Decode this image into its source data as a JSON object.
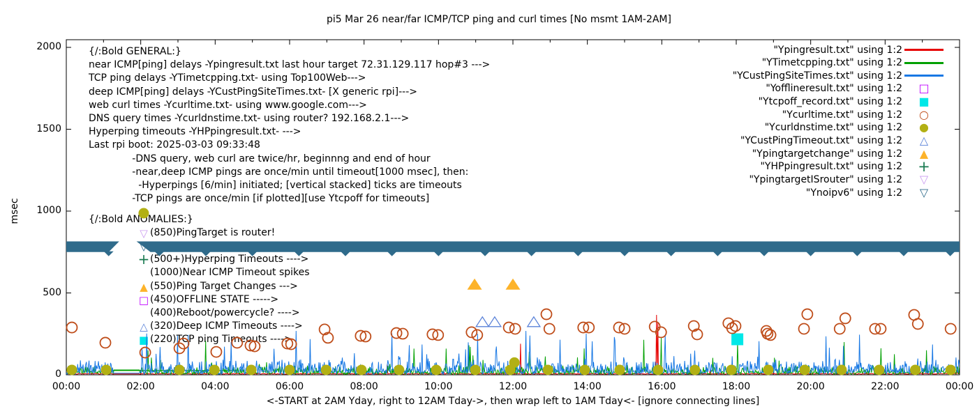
{
  "title": "pi5 Mar 26  near/far ICMP/TCP ping and curl times [No msmt 1AM-2AM]",
  "colors": {
    "red": "#e60000",
    "green": "#00a000",
    "blue": "#1878e4",
    "magenta": "#bf00ff",
    "cyan": "#00e8e8",
    "rust": "#bf4d1a",
    "olive": "#b2b014",
    "ltblue": "#5a82d8",
    "amber": "#fdb32a",
    "dkgreen": "#187a50",
    "violet": "#cb9df0",
    "steel": "#2f6b8b",
    "axis": "#000000"
  },
  "y_axis": {
    "label": "msec",
    "ticks": [
      0,
      500,
      1000,
      1500,
      2000
    ],
    "range": [
      0,
      2000
    ]
  },
  "x_axis": {
    "caption": "<-START at 2AM Yday, right to 12AM Tday->, then wrap left to 1AM Tday<- [ignore connecting lines]",
    "hours_span": 24,
    "major_every_h": 2,
    "minor_every_h": 1,
    "tick_labels": [
      "00:00",
      "02:00",
      "04:00",
      "06:00",
      "08:00",
      "10:00",
      "12:00",
      "14:00",
      "16:00",
      "18:00",
      "20:00",
      "22:00",
      "00:00"
    ]
  },
  "legend": {
    "rows": [
      {
        "label": "\"Ypingresult.txt\" using 1:2",
        "sample": "line",
        "color_key": "red"
      },
      {
        "label": "\"YTimetcpping.txt\" using 1:2",
        "sample": "line",
        "color_key": "green"
      },
      {
        "label": "\"YCustPingSiteTimes.txt\" using 1:2",
        "sample": "line",
        "color_key": "blue"
      },
      {
        "label": "\"Yofflineresult.txt\" using 1:2",
        "sample": "square-open",
        "color_key": "magenta"
      },
      {
        "label": "\"Ytcpoff_record.txt\" using 1:2",
        "sample": "square-filled",
        "color_key": "cyan"
      },
      {
        "label": "\"Ycurltime.txt\" using 1:2",
        "sample": "circle-open",
        "color_key": "rust"
      },
      {
        "label": "\"Ycurldnstime.txt\" using 1:2",
        "sample": "circle-filled",
        "color_key": "olive"
      },
      {
        "label": "\"YCustPingTimeout.txt\" using 1:2",
        "sample": "triangle-up-open",
        "color_key": "ltblue"
      },
      {
        "label": "\"Ypingtargetchange\" using 1:2",
        "sample": "triangle-up-filled",
        "color_key": "amber"
      },
      {
        "label": "\"YHPpingresult.txt\" using 1:2",
        "sample": "plus",
        "color_key": "dkgreen"
      },
      {
        "label": "\"YpingtargetISrouter\" using 1:2",
        "sample": "triangle-down-open",
        "color_key": "violet"
      },
      {
        "label": "\"Ynoipv6\" using 1:2",
        "sample": "triangle-down-open",
        "color_key": "steel"
      }
    ]
  },
  "annotations": {
    "general_lines": [
      "{/:Bold GENERAL:}",
      "near ICMP[ping] delays -Ypingresult.txt last hour target 72.31.129.117 hop#3 --->",
      "TCP ping delays -YTimetcpping.txt- using Top100Web--->",
      "deep ICMP[ping] delays -YCustPingSiteTimes.txt- [X generic rpi]--->",
      "web curl times -Ycurltime.txt- using www.google.com--->",
      "DNS query times -Ycurldnstime.txt- using router? 192.168.2.1--->",
      "Hyperping timeouts -YHPpingresult.txt- --->",
      "Last rpi boot: 2025-03-03 09:33:48",
      "              -DNS query, web curl are twice/hr, beginnng and end of hour",
      "              -near,deep ICMP pings are once/min until timeout[1000 msec], then:",
      "                -Hyperpings [6/min] initiated; [vertical stacked] ticks are timeouts",
      "              -TCP pings are once/min [if plotted][use Ytcpoff for timeouts]"
    ],
    "anomalies_rows": [
      {
        "marker": "",
        "color_key": "",
        "text": "{/:Bold ANOMALIES:}"
      },
      {
        "marker": "triangle-down-open",
        "color_key": "violet",
        "text": "(850)PingTarget is router!"
      },
      {
        "marker": "triangle-down-open",
        "color_key": "steel",
        "text": ""
      },
      {
        "marker": "plus",
        "color_key": "dkgreen",
        "text": "(500+)Hyperping Timeouts ---->"
      },
      {
        "marker": "",
        "color_key": "",
        "text": "(1000)Near ICMP Timeout spikes"
      },
      {
        "marker": "triangle-up-filled",
        "color_key": "amber",
        "text": "(550)Ping Target Changes --->"
      },
      {
        "marker": "square-open",
        "color_key": "magenta",
        "text": "(450)OFFLINE STATE ----->"
      },
      {
        "marker": "",
        "color_key": "",
        "text": "(400)Reboot/powercycle? ---->"
      },
      {
        "marker": "triangle-up-open",
        "color_key": "ltblue",
        "text": "(320)Deep ICMP Timeouts ---->"
      },
      {
        "marker": "square-filled",
        "color_key": "cyan",
        "text": "(220)TCP ping Timeouts ---->"
      }
    ]
  },
  "chart_data": {
    "type": "line",
    "title": "pi5 Mar 26  near/far ICMP/TCP ping and curl times [No msmt 1AM-2AM]",
    "xlabel": "<-START at 2AM Yday, right to 12AM Tday->, then wrap left to 1AM Tday<- [ignore connecting lines]",
    "ylabel": "msec",
    "x_range_hours": [
      0,
      24
    ],
    "ylim": [
      0,
      2000
    ],
    "grid": false,
    "legend_position": "top-right",
    "no_measurement_gap_hours": [
      1.27,
      1.98
    ],
    "series": [
      {
        "name": "\"Ypingresult.txt\" using 1:2",
        "type": "line",
        "color_key": "red",
        "noise": {
          "seed": 41,
          "base": 3,
          "jitter": 4,
          "max": 26,
          "pow": 2.5,
          "tall_prob": 0.012,
          "low": 0.15,
          "gap_flat": 5
        },
        "spikes": [
          [
            8.62,
            62
          ],
          [
            12.21,
            190
          ],
          [
            15.86,
            366
          ],
          [
            15.9,
            320
          ]
        ]
      },
      {
        "name": "\"YTimetcpping.txt\" using 1:2",
        "type": "line",
        "color_key": "green",
        "noise": {
          "seed": 29,
          "base": 2,
          "jitter": 12,
          "max": 205,
          "pow": 3.0,
          "tall_prob": 0.055,
          "low": 0.22,
          "gap_flat": 30
        },
        "spikes": [
          [
            2.2,
            150
          ],
          [
            9.35,
            160
          ],
          [
            10.2,
            160
          ],
          [
            15.99,
            225
          ],
          [
            20.9,
            200
          ],
          [
            23.12,
            150
          ]
        ],
        "flat_segments": [
          [
            1.08,
            4.62,
            26
          ]
        ]
      },
      {
        "name": "\"YCustPingSiteTimes.txt\" using 1:2",
        "type": "line",
        "color_key": "blue",
        "noise": {
          "seed": 13,
          "base": 2,
          "jitter": 20,
          "max": 250,
          "pow": 2.4,
          "tall_prob": 0.09,
          "low": 0.3,
          "gap_flat": 10
        },
        "spikes": [
          [
            2.52,
            170
          ],
          [
            4.42,
            200
          ],
          [
            6.18,
            268
          ],
          [
            11.06,
            250
          ],
          [
            12.34,
            268
          ],
          [
            12.45,
            240
          ],
          [
            14.72,
            230
          ],
          [
            16.1,
            240
          ],
          [
            18.62,
            205
          ],
          [
            20.42,
            235
          ],
          [
            21.32,
            245
          ],
          [
            23.28,
            185
          ]
        ]
      },
      {
        "name": "\"Yofflineresult.txt\" using 1:2",
        "type": "points",
        "marker": "square-open",
        "color_key": "magenta",
        "points": []
      },
      {
        "name": "\"Ytcpoff_record.txt\" using 1:2",
        "type": "points",
        "marker": "square-filled",
        "color_key": "cyan",
        "points": [
          [
            18.03,
            217
          ]
        ]
      },
      {
        "name": "\"Ycurltime.txt\" using 1:2",
        "type": "points",
        "marker": "circle-open",
        "color_key": "rust",
        "points": [
          [
            0.15,
            289
          ],
          [
            1.05,
            196
          ],
          [
            2.12,
            136
          ],
          [
            3.04,
            162
          ],
          [
            3.15,
            191
          ],
          [
            4.03,
            140
          ],
          [
            4.59,
            196
          ],
          [
            4.95,
            179
          ],
          [
            5.06,
            174
          ],
          [
            5.94,
            191
          ],
          [
            6.04,
            187
          ],
          [
            6.94,
            277
          ],
          [
            7.03,
            226
          ],
          [
            7.91,
            238
          ],
          [
            8.04,
            234
          ],
          [
            8.87,
            255
          ],
          [
            9.04,
            251
          ],
          [
            9.84,
            247
          ],
          [
            9.99,
            243
          ],
          [
            10.89,
            260
          ],
          [
            11.04,
            243
          ],
          [
            11.89,
            289
          ],
          [
            12.06,
            281
          ],
          [
            12.9,
            370
          ],
          [
            12.98,
            281
          ],
          [
            13.89,
            289
          ],
          [
            14.04,
            289
          ],
          [
            14.85,
            289
          ],
          [
            15.0,
            281
          ],
          [
            15.81,
            294
          ],
          [
            15.98,
            260
          ],
          [
            16.86,
            298
          ],
          [
            16.95,
            247
          ],
          [
            17.79,
            315
          ],
          [
            17.89,
            285
          ],
          [
            17.98,
            298
          ],
          [
            18.81,
            268
          ],
          [
            18.84,
            251
          ],
          [
            18.92,
            243
          ],
          [
            19.82,
            281
          ],
          [
            19.91,
            370
          ],
          [
            20.78,
            281
          ],
          [
            20.93,
            345
          ],
          [
            21.73,
            281
          ],
          [
            21.88,
            281
          ],
          [
            22.78,
            366
          ],
          [
            22.88,
            311
          ],
          [
            23.76,
            281
          ]
        ]
      },
      {
        "name": "\"Ycurldnstime.txt\" using 1:2",
        "type": "points",
        "marker": "circle-filled",
        "color_key": "olive",
        "points": [
          [
            0.15,
            30
          ],
          [
            1.07,
            30
          ],
          [
            2.08,
            987
          ],
          [
            3.04,
            30
          ],
          [
            3.98,
            30
          ],
          [
            4.97,
            30
          ],
          [
            6.0,
            30
          ],
          [
            6.98,
            30
          ],
          [
            7.93,
            30
          ],
          [
            8.94,
            30
          ],
          [
            9.94,
            30
          ],
          [
            10.99,
            30
          ],
          [
            11.93,
            30
          ],
          [
            12.04,
            75
          ],
          [
            12.94,
            30
          ],
          [
            13.93,
            30
          ],
          [
            14.87,
            30
          ],
          [
            15.9,
            30
          ],
          [
            16.89,
            30
          ],
          [
            17.87,
            30
          ],
          [
            18.86,
            30
          ],
          [
            19.84,
            30
          ],
          [
            20.83,
            30
          ],
          [
            21.84,
            30
          ],
          [
            22.81,
            30
          ],
          [
            23.76,
            30
          ]
        ]
      },
      {
        "name": "\"YCustPingTimeout.txt\" using 1:2",
        "type": "points",
        "marker": "triangle-up-open",
        "color_key": "ltblue",
        "points": [
          [
            11.18,
            320
          ],
          [
            11.51,
            320
          ],
          [
            12.56,
            320
          ]
        ]
      },
      {
        "name": "\"Ypingtargetchange\" using 1:2",
        "type": "points",
        "marker": "triangle-up-filled",
        "color_key": "amber",
        "points": [
          [
            10.97,
            550
          ],
          [
            12.0,
            550
          ]
        ]
      },
      {
        "name": "\"YHPpingresult.txt\" using 1:2",
        "type": "points",
        "marker": "plus",
        "color_key": "dkgreen",
        "points": []
      },
      {
        "name": "\"YpingtargetISrouter\" using 1:2",
        "type": "points",
        "marker": "triangle-down-open",
        "color_key": "violet",
        "points": []
      },
      {
        "name": "\"Ynoipv6\" using 1:2",
        "type": "band",
        "marker": "triangle-down-open",
        "color_key": "steel",
        "value": 780,
        "band_msec": [
          750,
          815
        ],
        "gap_hours": [
          1.27,
          1.98
        ],
        "tip_every_hours": 1.25
      }
    ]
  }
}
